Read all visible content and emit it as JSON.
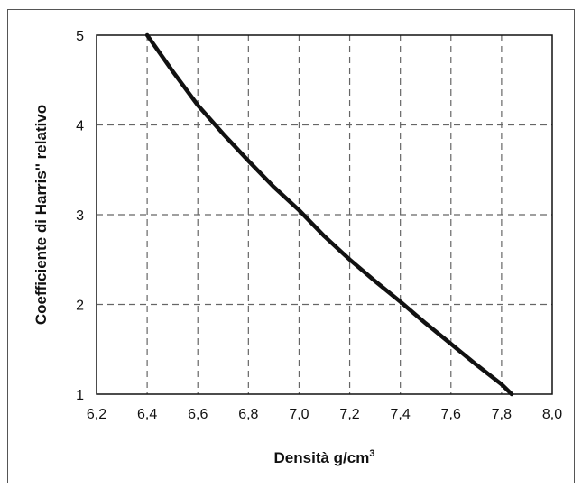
{
  "chart_data": {
    "type": "line",
    "title": "",
    "xlabel": "Densità g/cm",
    "xlabel_superscript": "3",
    "ylabel": "Coefficiente di Harris'' relativo",
    "xlim": [
      6.2,
      8.0
    ],
    "ylim": [
      1,
      5
    ],
    "x_ticks": [
      "6,2",
      "6,4",
      "6,6",
      "6,8",
      "7,0",
      "7,2",
      "7,4",
      "7,6",
      "7,8",
      "8,0"
    ],
    "y_ticks": [
      "1",
      "2",
      "3",
      "4",
      "5"
    ],
    "grid": true,
    "grid_style": "dashed",
    "series": [
      {
        "x": [
          6.4,
          6.5,
          6.6,
          6.7,
          6.8,
          6.9,
          7.0,
          7.1,
          7.2,
          7.3,
          7.4,
          7.5,
          7.6,
          7.7,
          7.8,
          7.84
        ],
        "y": [
          5.0,
          4.6,
          4.22,
          3.9,
          3.6,
          3.31,
          3.05,
          2.76,
          2.5,
          2.26,
          2.03,
          1.79,
          1.56,
          1.33,
          1.11,
          1.0
        ]
      }
    ],
    "colors": {
      "line": "#111111",
      "grid": "#666666",
      "axes": "#111111"
    }
  }
}
